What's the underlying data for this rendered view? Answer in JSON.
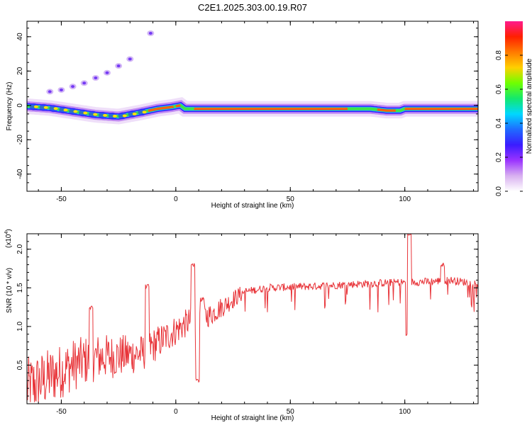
{
  "title": "C2E1.2025.303.00.19.R07",
  "colors": {
    "snr_line": "#e8353a",
    "frame": "#000000",
    "background": "#ffffff"
  },
  "chart_data": [
    {
      "type": "heatmap",
      "name": "spectrogram",
      "xlabel": "Height of straight line (km)",
      "ylabel": "Frequency (Hz)",
      "xlim": [
        -65,
        132
      ],
      "ylim": [
        -50,
        49
      ],
      "xticks": [
        -50,
        0,
        50,
        100
      ],
      "yticks": [
        -40,
        -20,
        0,
        20,
        40
      ],
      "colorbar": {
        "label": "Normalized spectral amplitude",
        "range": [
          0,
          1
        ],
        "ticks": [
          "0.0",
          "0.2",
          "0.4",
          "0.6",
          "0.8"
        ],
        "colors": [
          "#ffffff",
          "#d8b0f0",
          "#9a33ff",
          "#3a1cff",
          "#1f6bff",
          "#00d8ff",
          "#13e86d",
          "#6fff00",
          "#ffd000",
          "#ff7a00",
          "#ff2000",
          "#ff1a8c"
        ]
      },
      "main_band": [
        {
          "x": -65,
          "f": -0.5
        },
        {
          "x": -55,
          "f": -1.5
        },
        {
          "x": -45,
          "f": -3.5
        },
        {
          "x": -35,
          "f": -5.5
        },
        {
          "x": -25,
          "f": -6.5
        },
        {
          "x": -15,
          "f": -4
        },
        {
          "x": -8,
          "f": -2
        },
        {
          "x": -2,
          "f": -1
        },
        {
          "x": 2,
          "f": 0
        },
        {
          "x": 4,
          "f": -2
        },
        {
          "x": 10,
          "f": -2
        },
        {
          "x": 30,
          "f": -2
        },
        {
          "x": 60,
          "f": -2
        },
        {
          "x": 85,
          "f": -2
        },
        {
          "x": 92,
          "f": -3
        },
        {
          "x": 98,
          "f": -3
        },
        {
          "x": 100,
          "f": -2
        },
        {
          "x": 132,
          "f": -2
        }
      ],
      "harmonic_points": [
        {
          "x": -55,
          "f": 8
        },
        {
          "x": -50,
          "f": 9
        },
        {
          "x": -45,
          "f": 11
        },
        {
          "x": -40,
          "f": 13
        },
        {
          "x": -35,
          "f": 16
        },
        {
          "x": -30,
          "f": 19
        },
        {
          "x": -25,
          "f": 23
        },
        {
          "x": -20,
          "f": 27
        },
        {
          "x": -11,
          "f": 42
        }
      ]
    },
    {
      "type": "line",
      "name": "snr",
      "xlabel": "Height of straight line (km)",
      "ylabel": "SNR (10 * v/v)",
      "y_multiplier": "(x10",
      "y_multiplier_exp": "4",
      "y_multiplier_close": ")",
      "xlim": [
        -65,
        132
      ],
      "ylim": [
        0,
        2.2
      ],
      "xticks": [
        -50,
        0,
        50,
        100
      ],
      "yticks": [
        "0.5",
        "1.0",
        "1.5",
        "2.0"
      ],
      "yticks_values": [
        0.5,
        1.0,
        1.5,
        2.0
      ],
      "trend": [
        {
          "x": -65,
          "y": 0.2
        },
        {
          "x": -55,
          "y": 0.35
        },
        {
          "x": -45,
          "y": 0.5
        },
        {
          "x": -35,
          "y": 0.6
        },
        {
          "x": -25,
          "y": 0.62
        },
        {
          "x": -15,
          "y": 0.65
        },
        {
          "x": -5,
          "y": 0.85
        },
        {
          "x": 5,
          "y": 1.05
        },
        {
          "x": 8,
          "y": 1.1
        },
        {
          "x": 15,
          "y": 1.15
        },
        {
          "x": 20,
          "y": 1.25
        },
        {
          "x": 25,
          "y": 1.35
        },
        {
          "x": 30,
          "y": 1.45
        },
        {
          "x": 40,
          "y": 1.5
        },
        {
          "x": 60,
          "y": 1.52
        },
        {
          "x": 80,
          "y": 1.55
        },
        {
          "x": 95,
          "y": 1.57
        },
        {
          "x": 110,
          "y": 1.58
        },
        {
          "x": 120,
          "y": 1.6
        },
        {
          "x": 132,
          "y": 1.55
        }
      ],
      "features": [
        {
          "x": 7.5,
          "y": 1.8
        },
        {
          "x": 9.5,
          "y": 0.3
        },
        {
          "x": 11.5,
          "y": 1.35
        },
        {
          "x": -12.5,
          "y": 1.52
        },
        {
          "x": -37,
          "y": 1.25
        },
        {
          "x": 101.2,
          "y": 0.9
        },
        {
          "x": 102,
          "y": 2.2
        },
        {
          "x": 116.5,
          "y": 1.8
        }
      ]
    }
  ]
}
